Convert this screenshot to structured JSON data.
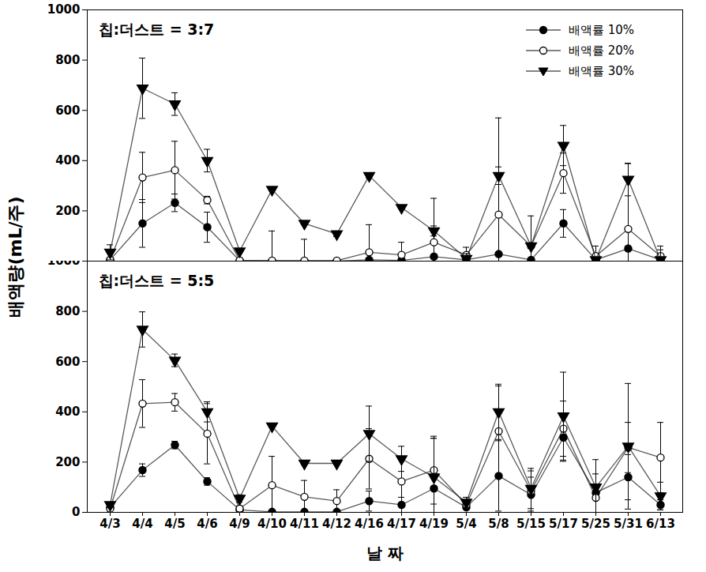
{
  "chart_data": [
    {
      "type": "line",
      "title": "칩:더스트 = 3:7",
      "y_label": "배액량(mL/주)",
      "categories": [
        "4/3",
        "4/4",
        "4/5",
        "4/6",
        "4/9",
        "4/10",
        "4/11",
        "4/12",
        "4/16",
        "4/17",
        "4/19",
        "5/4",
        "5/8",
        "5/15",
        "5/17",
        "5/25",
        "5/31",
        "6/13"
      ],
      "ylim": [
        0,
        1000
      ],
      "yticks": [
        200,
        400,
        600,
        800,
        1000
      ],
      "tick_labels": "y",
      "legend": "upper right",
      "series": [
        {
          "name": "배액률 10%",
          "color": "#000000",
          "marker": "circle",
          "values": [
            5,
            150,
            232,
            135,
            2,
            0,
            0,
            0,
            5,
            3,
            18,
            5,
            28,
            5,
            150,
            5,
            50,
            5
          ],
          "errors": [
            0,
            95,
            35,
            60,
            0,
            0,
            0,
            0,
            0,
            0,
            0,
            0,
            0,
            0,
            55,
            0,
            10,
            0
          ]
        },
        {
          "name": "배액률 20%",
          "color": "#000000",
          "marker": "circle_open",
          "values": [
            5,
            333,
            362,
            243,
            3,
            2,
            2,
            2,
            35,
            25,
            75,
            25,
            185,
            60,
            350,
            20,
            128,
            20
          ],
          "errors": [
            5,
            100,
            115,
            15,
            3,
            118,
            85,
            0,
            110,
            50,
            175,
            30,
            385,
            120,
            80,
            40,
            260,
            40
          ]
        },
        {
          "name": "배액률 30%",
          "color": "#000000",
          "marker": "triangle_down",
          "values": [
            35,
            688,
            625,
            400,
            40,
            285,
            150,
            108,
            340,
            213,
            120,
            10,
            340,
            60,
            460,
            5,
            325,
            5
          ],
          "errors": [
            30,
            120,
            45,
            45,
            5,
            5,
            5,
            10,
            10,
            5,
            20,
            20,
            35,
            10,
            80,
            5,
            65,
            40
          ]
        }
      ]
    },
    {
      "type": "line",
      "title": "칩:더스트 = 5:5",
      "x_label": "날 짜",
      "categories": [
        "4/3",
        "4/4",
        "4/5",
        "4/6",
        "4/9",
        "4/10",
        "4/11",
        "4/12",
        "4/16",
        "4/17",
        "4/19",
        "5/4",
        "5/8",
        "5/15",
        "5/17",
        "5/25",
        "5/31",
        "6/13"
      ],
      "ylim": [
        0,
        1000
      ],
      "yticks": [
        0,
        200,
        400,
        600,
        800,
        1000
      ],
      "series": [
        {
          "name": "배액률 10%",
          "color": "#000000",
          "marker": "circle",
          "values": [
            20,
            168,
            268,
            123,
            10,
            2,
            2,
            2,
            45,
            30,
            95,
            20,
            145,
            70,
            298,
            78,
            140,
            30
          ],
          "errors": [
            5,
            25,
            15,
            15,
            5,
            0,
            0,
            0,
            40,
            30,
            200,
            5,
            140,
            70,
            95,
            20,
            90,
            20
          ]
        },
        {
          "name": "배액률 20%",
          "color": "#000000",
          "marker": "circle_open",
          "values": [
            15,
            433,
            438,
            313,
            15,
            108,
            62,
            45,
            213,
            123,
            168,
            30,
            323,
            85,
            333,
            58,
            258,
            218
          ],
          "errors": [
            10,
            95,
            35,
            120,
            10,
            115,
            65,
            45,
            120,
            90,
            135,
            15,
            180,
            80,
            110,
            95,
            100,
            140
          ]
        },
        {
          "name": "배액률 30%",
          "color": "#000000",
          "marker": "triangle_down",
          "values": [
            30,
            728,
            605,
            400,
            55,
            343,
            195,
            195,
            313,
            213,
            140,
            40,
            400,
            95,
            383,
            100,
            263,
            65
          ],
          "errors": [
            10,
            70,
            25,
            40,
            15,
            5,
            5,
            5,
            110,
            50,
            155,
            20,
            110,
            80,
            175,
            110,
            250,
            55
          ]
        }
      ]
    }
  ]
}
